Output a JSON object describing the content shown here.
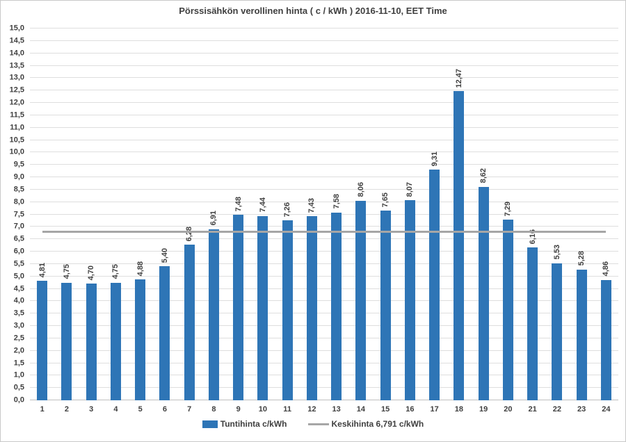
{
  "chart_data": {
    "type": "bar",
    "title": "Pörssisähkön verollinen hinta ( c / kWh ) 2016-11-10, EET Time",
    "series_name": "Tuntihinta c/kWh",
    "categories": [
      "1",
      "2",
      "3",
      "4",
      "5",
      "6",
      "7",
      "8",
      "9",
      "10",
      "11",
      "12",
      "13",
      "14",
      "15",
      "16",
      "17",
      "18",
      "19",
      "20",
      "21",
      "22",
      "23",
      "24"
    ],
    "values": [
      4.81,
      4.75,
      4.7,
      4.75,
      4.88,
      5.4,
      6.28,
      6.91,
      7.48,
      7.44,
      7.26,
      7.43,
      7.58,
      8.06,
      7.65,
      8.07,
      9.31,
      12.47,
      8.62,
      7.29,
      6.16,
      5.53,
      5.28,
      4.86
    ],
    "value_labels": [
      "4,81",
      "4,75",
      "4,70",
      "4,75",
      "4,88",
      "5,40",
      "6,28",
      "6,91",
      "7,48",
      "7,44",
      "7,26",
      "7,43",
      "7,58",
      "8,06",
      "7,65",
      "8,07",
      "9,31",
      "12,47",
      "8,62",
      "7,29",
      "6,16",
      "5,53",
      "5,28",
      "4,86"
    ],
    "average_line": {
      "value": 6.791,
      "label": "Keskihinta 6,791 c/kWh"
    },
    "ylim": [
      0,
      15
    ],
    "ytick_step": 0.5,
    "ytick_labels": [
      "0,0",
      "0,5",
      "1,0",
      "1,5",
      "2,0",
      "2,5",
      "3,0",
      "3,5",
      "4,0",
      "4,5",
      "5,0",
      "5,5",
      "6,0",
      "6,5",
      "7,0",
      "7,5",
      "8,0",
      "8,5",
      "9,0",
      "9,5",
      "10,0",
      "10,5",
      "11,0",
      "11,5",
      "12,0",
      "12,5",
      "13,0",
      "13,5",
      "14,0",
      "14,5",
      "15,0"
    ],
    "xlabel": "",
    "ylabel": "",
    "grid": true,
    "legend_position": "bottom"
  },
  "legend": {
    "series_label": "Tuntihinta c/kWh",
    "average_label": "Keskihinta 6,791 c/kWh"
  },
  "colors": {
    "bar": "#2e75b6",
    "average_line": "#a6a6a6",
    "gridline": "#dedede",
    "axis_line": "#bfbfbf",
    "text": "#404040",
    "border": "#c9c9c9"
  }
}
